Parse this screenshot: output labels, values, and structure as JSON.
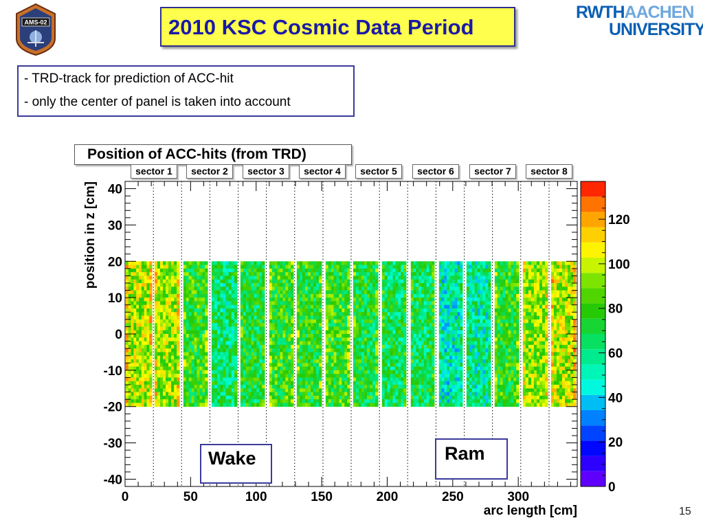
{
  "header": {
    "title": "2010 KSC Cosmic Data Period",
    "badge_text": "AMS-02",
    "brand_left": "RWTH",
    "brand_right": "AACHEN",
    "brand_bottom": "UNIVERSITY"
  },
  "notes": [
    "- TRD-track for prediction of ACC-hit",
    "- only the center of panel is taken into account"
  ],
  "annotations": {
    "wake": "Wake",
    "ram": "Ram"
  },
  "page_number": "15",
  "colors": {
    "title_bg": "#ffff4d",
    "title_text": "#1a1aa6",
    "box_border": "#3a3a9a",
    "brand_blue": "#0a5fb4"
  },
  "chart_data": {
    "type": "heatmap",
    "title": "Position of ACC-hits (from TRD)",
    "xlabel": "arc length  [cm]",
    "ylabel": "position in z  [cm]",
    "xlim": [
      0,
      345
    ],
    "ylim": [
      -42,
      42
    ],
    "x_ticks": [
      0,
      50,
      100,
      150,
      200,
      250,
      300
    ],
    "y_ticks": [
      -40,
      -30,
      -20,
      -10,
      0,
      10,
      20,
      30,
      40
    ],
    "z_ticks": [
      0,
      20,
      40,
      60,
      80,
      100,
      120
    ],
    "zlim": [
      0,
      137
    ],
    "filled_z_range": [
      -20,
      20
    ],
    "sector_boundaries": [
      21.6,
      43.1,
      64.7,
      86.3,
      107.8,
      129.4,
      151.0,
      172.5,
      194.1,
      215.6,
      237.2,
      258.8,
      280.3,
      301.9,
      323.5
    ],
    "sectors": [
      {
        "label": "sector 1"
      },
      {
        "label": "sector 2"
      },
      {
        "label": "sector 3"
      },
      {
        "label": "sector 4"
      },
      {
        "label": "sector 5"
      },
      {
        "label": "sector 6"
      },
      {
        "label": "sector 7"
      },
      {
        "label": "sector 8"
      }
    ],
    "panels": [
      {
        "x0": 0.5,
        "x1": 20.5,
        "mean_counts": 96
      },
      {
        "x0": 22.5,
        "x1": 41.5,
        "mean_counts": 93
      },
      {
        "x0": 44.5,
        "x1": 63.0,
        "mean_counts": 78
      },
      {
        "x0": 66.0,
        "x1": 85.5,
        "mean_counts": 62
      },
      {
        "x0": 88.0,
        "x1": 106.5,
        "mean_counts": 70
      },
      {
        "x0": 110.0,
        "x1": 128.5,
        "mean_counts": 78
      },
      {
        "x0": 131.0,
        "x1": 150.0,
        "mean_counts": 75
      },
      {
        "x0": 153.0,
        "x1": 171.5,
        "mean_counts": 78
      },
      {
        "x0": 174.0,
        "x1": 193.0,
        "mean_counts": 72
      },
      {
        "x0": 196.0,
        "x1": 214.5,
        "mean_counts": 65
      },
      {
        "x0": 218.0,
        "x1": 236.0,
        "mean_counts": 66
      },
      {
        "x0": 239.5,
        "x1": 257.5,
        "mean_counts": 52
      },
      {
        "x0": 260.5,
        "x1": 279.0,
        "mean_counts": 56
      },
      {
        "x0": 282.0,
        "x1": 300.5,
        "mean_counts": 76
      },
      {
        "x0": 303.5,
        "x1": 322.5,
        "mean_counts": 90
      },
      {
        "x0": 325.0,
        "x1": 344.0,
        "mean_counts": 98
      }
    ]
  }
}
